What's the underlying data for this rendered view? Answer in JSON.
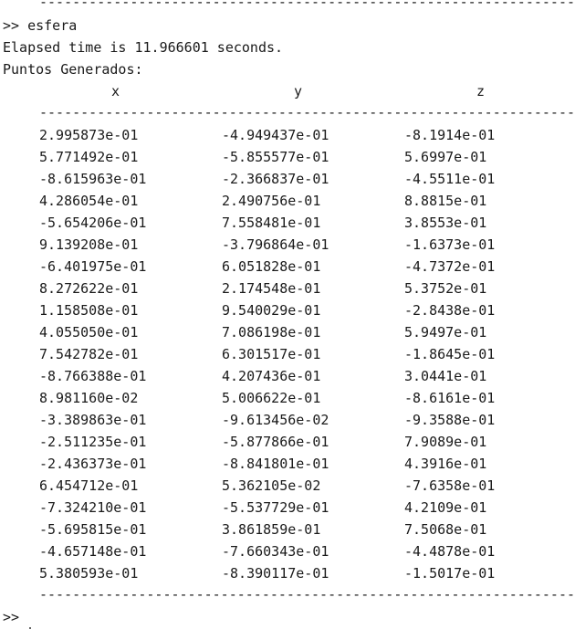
{
  "console": {
    "separator": "---------------------------------------------------------------------------------",
    "command_line": ">> esfera",
    "elapsed_line": "Elapsed time is 11.966601 seconds.",
    "section_title": "Puntos Generados:",
    "headers": [
      "x",
      "y",
      "z"
    ],
    "rows": [
      [
        "2.995873e-01",
        "-4.949437e-01",
        "-8.1914e-01"
      ],
      [
        "5.771492e-01",
        "-5.855577e-01",
        "5.6997e-01"
      ],
      [
        "-8.615963e-01",
        "-2.366837e-01",
        "-4.5511e-01"
      ],
      [
        "4.286054e-01",
        "2.490756e-01",
        "8.8815e-01"
      ],
      [
        "-5.654206e-01",
        "7.558481e-01",
        "3.8553e-01"
      ],
      [
        "9.139208e-01",
        "-3.796864e-01",
        "-1.6373e-01"
      ],
      [
        "-6.401975e-01",
        "6.051828e-01",
        "-4.7372e-01"
      ],
      [
        "8.272622e-01",
        "2.174548e-01",
        "5.3752e-01"
      ],
      [
        "1.158508e-01",
        "9.540029e-01",
        "-2.8438e-01"
      ],
      [
        "4.055050e-01",
        "7.086198e-01",
        "5.9497e-01"
      ],
      [
        "7.542782e-01",
        "6.301517e-01",
        "-1.8645e-01"
      ],
      [
        "-8.766388e-01",
        "4.207436e-01",
        "3.0441e-01"
      ],
      [
        "8.981160e-02",
        "5.006622e-01",
        "-8.6161e-01"
      ],
      [
        "-3.389863e-01",
        "-9.613456e-02",
        "-9.3588e-01"
      ],
      [
        "-2.511235e-01",
        "-5.877866e-01",
        "7.9089e-01"
      ],
      [
        "-2.436373e-01",
        "-8.841801e-01",
        "4.3916e-01"
      ],
      [
        "6.454712e-01",
        "5.362105e-02",
        "-7.6358e-01"
      ],
      [
        "-7.324210e-01",
        "-5.537729e-01",
        "4.2109e-01"
      ],
      [
        "-5.695815e-01",
        "3.861859e-01",
        "7.5068e-01"
      ],
      [
        "-4.657148e-01",
        "-7.660343e-01",
        "-4.4878e-01"
      ],
      [
        "5.380593e-01",
        "-8.390117e-01",
        "-1.5017e-01"
      ]
    ],
    "prompt": ">>"
  }
}
